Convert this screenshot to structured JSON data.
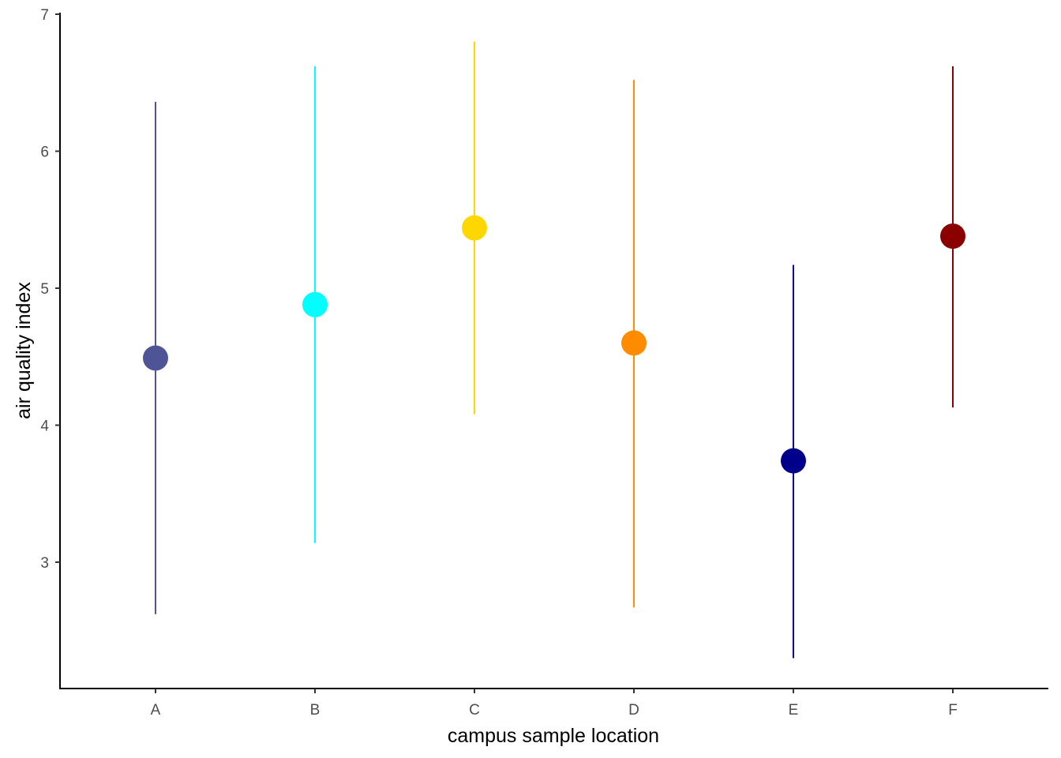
{
  "chart_data": {
    "type": "scatter",
    "title": "",
    "xlabel": "campus sample location",
    "ylabel": "air quality index",
    "categories": [
      "A",
      "B",
      "C",
      "D",
      "E",
      "F"
    ],
    "points": [
      {
        "category": "A",
        "mean": 4.49,
        "lower": 2.62,
        "upper": 6.36,
        "color": "#4f5496"
      },
      {
        "category": "B",
        "mean": 4.88,
        "lower": 3.14,
        "upper": 6.62,
        "color": "#00ffff"
      },
      {
        "category": "C",
        "mean": 5.44,
        "lower": 4.08,
        "upper": 6.8,
        "color": "#ffd700"
      },
      {
        "category": "D",
        "mean": 4.6,
        "lower": 2.67,
        "upper": 6.52,
        "color": "#ff8c00"
      },
      {
        "category": "E",
        "mean": 3.74,
        "lower": 2.3,
        "upper": 5.17,
        "color": "#00008b"
      },
      {
        "category": "F",
        "mean": 5.38,
        "lower": 4.13,
        "upper": 6.62,
        "color": "#8b0000"
      }
    ],
    "y_ticks": [
      3,
      4,
      5,
      6,
      7
    ],
    "ylim": [
      2.1,
      7.0
    ],
    "grid": false,
    "legend": "none"
  }
}
